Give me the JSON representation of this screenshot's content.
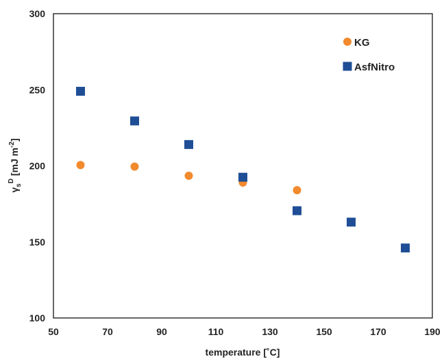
{
  "chart_data": {
    "type": "scatter",
    "xlabel": "temperature [˚C]",
    "ylabel_main": "γ",
    "ylabel_sub": "s",
    "ylabel_sup": "D",
    "ylabel_unit": " [mJ m",
    "ylabel_unit_sup": "-2",
    "ylabel_unit_end": "]",
    "xlim": [
      50,
      190
    ],
    "ylim": [
      100,
      300
    ],
    "x_ticks": [
      "50",
      "70",
      "90",
      "110",
      "130",
      "150",
      "170",
      "190"
    ],
    "y_ticks": [
      "100",
      "150",
      "200",
      "250",
      "300"
    ],
    "grid": false,
    "legend_position": "top-right",
    "series": [
      {
        "name": "KG",
        "marker": "circle",
        "color": "#F28A2E",
        "x": [
          60,
          80,
          100,
          120,
          140
        ],
        "y": [
          200.5,
          199.5,
          193.5,
          189,
          184
        ]
      },
      {
        "name": "AsfNitro",
        "marker": "square",
        "color": "#1F4E96",
        "x": [
          60,
          80,
          100,
          120,
          140,
          160,
          180
        ],
        "y": [
          249,
          229.5,
          214,
          192.5,
          170.5,
          163,
          146
        ]
      }
    ]
  }
}
